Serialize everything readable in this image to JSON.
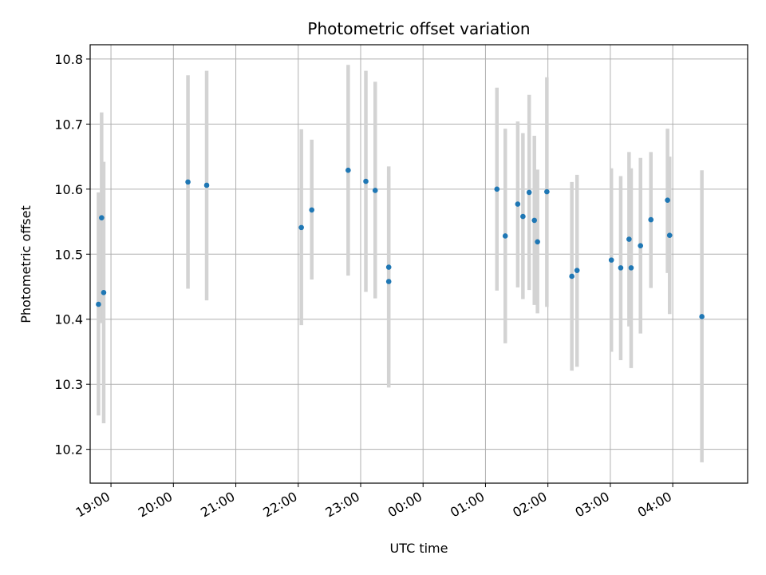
{
  "chart_data": {
    "type": "scatter",
    "title": "Photometric offset variation",
    "xlabel": "UTC time",
    "ylabel": "Photometric offset",
    "grid": true,
    "x_unit": "UTC time of day (night spanning midnight)",
    "xlim": [
      "18:40",
      "29:12"
    ],
    "ylim": [
      10.148,
      10.822
    ],
    "x_ticks": [
      "19:00",
      "20:00",
      "21:00",
      "22:00",
      "23:00",
      "24:00",
      "25:00",
      "26:00",
      "27:00",
      "28:00"
    ],
    "x_tick_labels": [
      "19:00",
      "20:00",
      "21:00",
      "22:00",
      "23:00",
      "00:00",
      "01:00",
      "02:00",
      "03:00",
      "04:00"
    ],
    "y_ticks": [
      10.2,
      10.3,
      10.4,
      10.5,
      10.6,
      10.7,
      10.8
    ],
    "y_tick_labels": [
      "10.2",
      "10.3",
      "10.4",
      "10.5",
      "10.6",
      "10.7",
      "10.8"
    ],
    "colors": {
      "points": "#1f77b4",
      "error_bars": "#d3d3d3",
      "grid": "#b0b0b0"
    },
    "points": [
      {
        "x": "18:48",
        "y": 10.423,
        "err_low": 10.252,
        "err_high": 10.595
      },
      {
        "x": "18:51",
        "y": 10.556,
        "err_low": 10.394,
        "err_high": 10.718
      },
      {
        "x": "18:53",
        "y": 10.441,
        "err_low": 10.24,
        "err_high": 10.642
      },
      {
        "x": "20:14",
        "y": 10.611,
        "err_low": 10.447,
        "err_high": 10.775
      },
      {
        "x": "20:32",
        "y": 10.606,
        "err_low": 10.429,
        "err_high": 10.782
      },
      {
        "x": "22:03",
        "y": 10.541,
        "err_low": 10.391,
        "err_high": 10.692
      },
      {
        "x": "22:13",
        "y": 10.568,
        "err_low": 10.461,
        "err_high": 10.676
      },
      {
        "x": "22:48",
        "y": 10.629,
        "err_low": 10.467,
        "err_high": 10.791
      },
      {
        "x": "23:05",
        "y": 10.612,
        "err_low": 10.442,
        "err_high": 10.782
      },
      {
        "x": "23:14",
        "y": 10.598,
        "err_low": 10.432,
        "err_high": 10.765
      },
      {
        "x": "23:27",
        "y": 10.48,
        "err_low": 10.325,
        "err_high": 10.635
      },
      {
        "x": "23:27",
        "y": 10.458,
        "err_low": 10.295,
        "err_high": 10.62
      },
      {
        "x": "25:11",
        "y": 10.6,
        "err_low": 10.444,
        "err_high": 10.756
      },
      {
        "x": "25:19",
        "y": 10.528,
        "err_low": 10.363,
        "err_high": 10.693
      },
      {
        "x": "25:31",
        "y": 10.577,
        "err_low": 10.449,
        "err_high": 10.704
      },
      {
        "x": "25:36",
        "y": 10.558,
        "err_low": 10.431,
        "err_high": 10.686
      },
      {
        "x": "25:42",
        "y": 10.595,
        "err_low": 10.445,
        "err_high": 10.745
      },
      {
        "x": "25:47",
        "y": 10.552,
        "err_low": 10.422,
        "err_high": 10.682
      },
      {
        "x": "25:50",
        "y": 10.519,
        "err_low": 10.409,
        "err_high": 10.63
      },
      {
        "x": "25:59",
        "y": 10.596,
        "err_low": 10.419,
        "err_high": 10.772
      },
      {
        "x": "26:23",
        "y": 10.466,
        "err_low": 10.321,
        "err_high": 10.611
      },
      {
        "x": "26:28",
        "y": 10.475,
        "err_low": 10.327,
        "err_high": 10.622
      },
      {
        "x": "27:01",
        "y": 10.491,
        "err_low": 10.35,
        "err_high": 10.632
      },
      {
        "x": "27:10",
        "y": 10.479,
        "err_low": 10.337,
        "err_high": 10.62
      },
      {
        "x": "27:18",
        "y": 10.523,
        "err_low": 10.389,
        "err_high": 10.657
      },
      {
        "x": "27:20",
        "y": 10.479,
        "err_low": 10.325,
        "err_high": 10.632
      },
      {
        "x": "27:29",
        "y": 10.513,
        "err_low": 10.378,
        "err_high": 10.648
      },
      {
        "x": "27:39",
        "y": 10.553,
        "err_low": 10.448,
        "err_high": 10.657
      },
      {
        "x": "27:55",
        "y": 10.583,
        "err_low": 10.471,
        "err_high": 10.693
      },
      {
        "x": "27:57",
        "y": 10.529,
        "err_low": 10.408,
        "err_high": 10.65
      },
      {
        "x": "28:28",
        "y": 10.404,
        "err_low": 10.18,
        "err_high": 10.629
      }
    ]
  }
}
